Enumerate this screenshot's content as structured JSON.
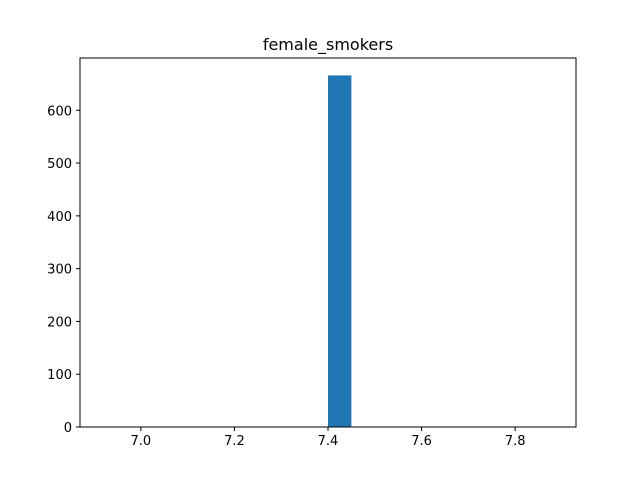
{
  "chart_data": {
    "type": "bar",
    "title": "female_smokers",
    "xlabel": "",
    "ylabel": "",
    "bars": [
      {
        "x_start": 7.4,
        "x_end": 7.45,
        "value": 666
      }
    ],
    "xlim": [
      6.87,
      7.93
    ],
    "ylim": [
      0,
      699
    ],
    "x_ticks": [
      {
        "value": 7.0,
        "label": "7.0"
      },
      {
        "value": 7.2,
        "label": "7.2"
      },
      {
        "value": 7.4,
        "label": "7.4"
      },
      {
        "value": 7.6,
        "label": "7.6"
      },
      {
        "value": 7.8,
        "label": "7.8"
      }
    ],
    "y_ticks": [
      {
        "value": 0,
        "label": "0"
      },
      {
        "value": 100,
        "label": "100"
      },
      {
        "value": 200,
        "label": "200"
      },
      {
        "value": 300,
        "label": "300"
      },
      {
        "value": 400,
        "label": "400"
      },
      {
        "value": 500,
        "label": "500"
      },
      {
        "value": 600,
        "label": "600"
      }
    ],
    "bar_color": "#1f77b4",
    "grid": false,
    "legend": "none"
  }
}
